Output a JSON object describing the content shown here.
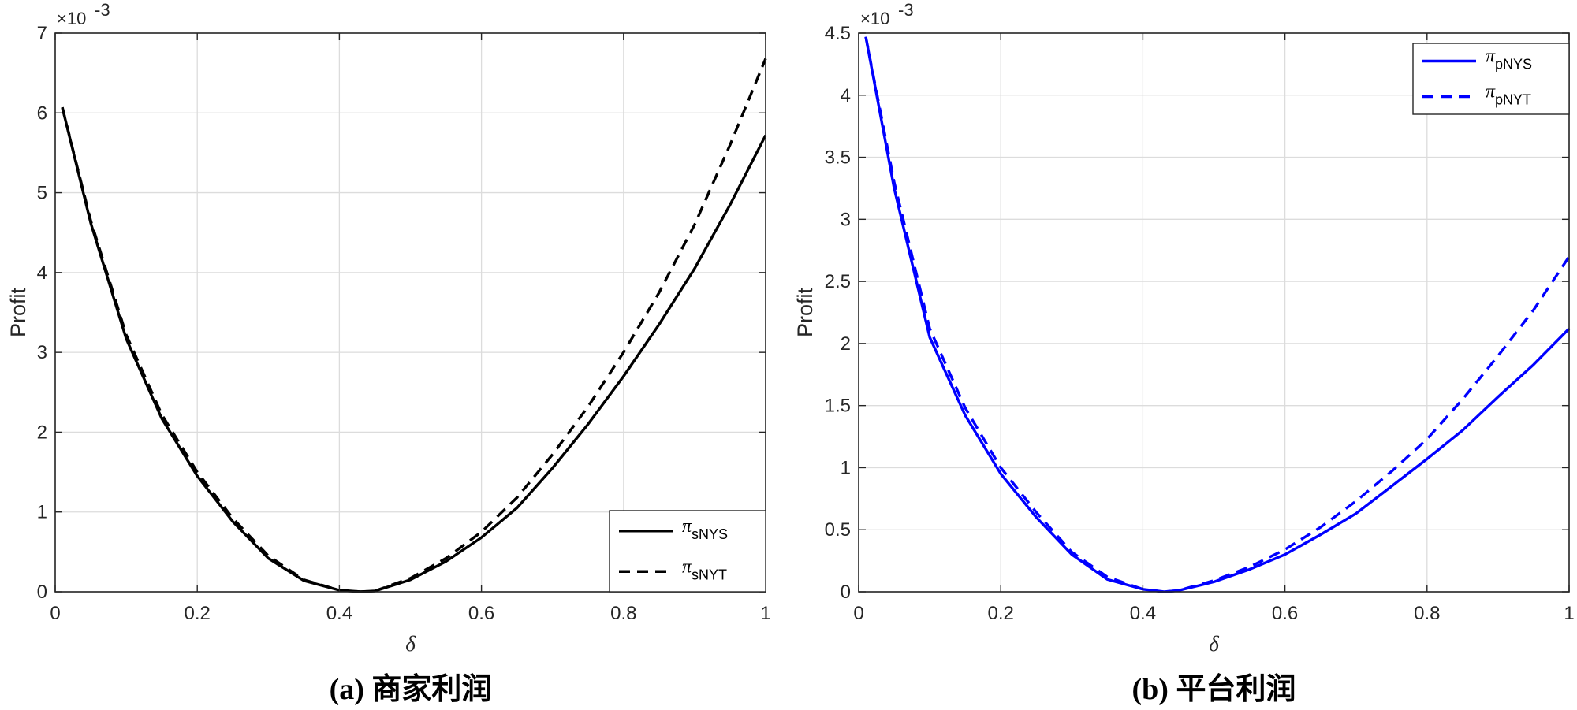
{
  "chart_data": [
    {
      "type": "line",
      "caption": "(a) 商家利润",
      "xlabel": "δ",
      "ylabel": "Profit",
      "exponent_label": "×10",
      "exponent_power": "-3",
      "xlim": [
        0,
        1
      ],
      "ylim": [
        0,
        7
      ],
      "xticks": [
        0,
        0.2,
        0.4,
        0.6,
        0.8,
        1
      ],
      "xtick_labels": [
        "0",
        "0.2",
        "0.4",
        "0.6",
        "0.8",
        "1"
      ],
      "yticks": [
        0,
        1,
        2,
        3,
        4,
        5,
        6,
        7
      ],
      "ytick_labels": [
        "0",
        "1",
        "2",
        "3",
        "4",
        "5",
        "6",
        "7"
      ],
      "grid": true,
      "legend_position": "bottom-right",
      "line_color": "#000000",
      "series": [
        {
          "name": "π",
          "subscript": "sNYS",
          "style": "solid",
          "x": [
            0.01,
            0.05,
            0.1,
            0.15,
            0.2,
            0.25,
            0.3,
            0.35,
            0.4,
            0.43,
            0.45,
            0.5,
            0.55,
            0.6,
            0.65,
            0.7,
            0.75,
            0.8,
            0.85,
            0.9,
            0.95,
            1.0
          ],
          "y": [
            6.07,
            4.62,
            3.17,
            2.17,
            1.45,
            0.88,
            0.42,
            0.14,
            0.02,
            0.0,
            0.01,
            0.15,
            0.38,
            0.68,
            1.05,
            1.55,
            2.1,
            2.7,
            3.35,
            4.05,
            4.85,
            5.72
          ]
        },
        {
          "name": "π",
          "subscript": "sNYT",
          "style": "dashed",
          "x": [
            0.01,
            0.05,
            0.1,
            0.15,
            0.2,
            0.25,
            0.3,
            0.35,
            0.4,
            0.43,
            0.45,
            0.5,
            0.55,
            0.6,
            0.65,
            0.7,
            0.75,
            0.8,
            0.85,
            0.9,
            0.95,
            1.0
          ],
          "y": [
            6.07,
            4.65,
            3.22,
            2.22,
            1.5,
            0.92,
            0.45,
            0.15,
            0.02,
            0.0,
            0.01,
            0.17,
            0.42,
            0.75,
            1.18,
            1.72,
            2.32,
            3.0,
            3.75,
            4.6,
            5.6,
            6.68
          ]
        }
      ]
    },
    {
      "type": "line",
      "caption": "(b) 平台利润",
      "xlabel": "δ",
      "ylabel": "Profit",
      "exponent_label": "×10",
      "exponent_power": "-3",
      "xlim": [
        0,
        1
      ],
      "ylim": [
        0,
        4.5
      ],
      "xticks": [
        0,
        0.2,
        0.4,
        0.6,
        0.8,
        1
      ],
      "xtick_labels": [
        "0",
        "0.2",
        "0.4",
        "0.6",
        "0.8",
        "1"
      ],
      "yticks": [
        0,
        0.5,
        1,
        1.5,
        2,
        2.5,
        3,
        3.5,
        4,
        4.5
      ],
      "ytick_labels": [
        "0",
        "0.5",
        "1",
        "1.5",
        "2",
        "2.5",
        "3",
        "3.5",
        "4",
        "4.5"
      ],
      "grid": true,
      "legend_position": "top-right",
      "line_color": "#0000ff",
      "series": [
        {
          "name": "π",
          "subscript": "pNYS",
          "style": "solid",
          "x": [
            0.01,
            0.05,
            0.1,
            0.15,
            0.2,
            0.25,
            0.3,
            0.35,
            0.4,
            0.43,
            0.45,
            0.5,
            0.55,
            0.6,
            0.65,
            0.7,
            0.75,
            0.8,
            0.85,
            0.9,
            0.95,
            1.0
          ],
          "y": [
            4.47,
            3.25,
            2.05,
            1.42,
            0.95,
            0.6,
            0.3,
            0.1,
            0.02,
            0.0,
            0.01,
            0.08,
            0.18,
            0.3,
            0.46,
            0.63,
            0.85,
            1.07,
            1.3,
            1.57,
            1.83,
            2.12
          ]
        },
        {
          "name": "π",
          "subscript": "pNYT",
          "style": "dashed",
          "x": [
            0.01,
            0.05,
            0.1,
            0.15,
            0.2,
            0.25,
            0.3,
            0.35,
            0.4,
            0.43,
            0.45,
            0.5,
            0.55,
            0.6,
            0.65,
            0.7,
            0.75,
            0.8,
            0.85,
            0.9,
            0.95,
            1.0
          ],
          "y": [
            4.47,
            3.3,
            2.12,
            1.48,
            1.0,
            0.64,
            0.32,
            0.12,
            0.02,
            0.0,
            0.01,
            0.09,
            0.2,
            0.34,
            0.52,
            0.73,
            0.97,
            1.23,
            1.55,
            1.9,
            2.27,
            2.7
          ]
        }
      ]
    }
  ]
}
